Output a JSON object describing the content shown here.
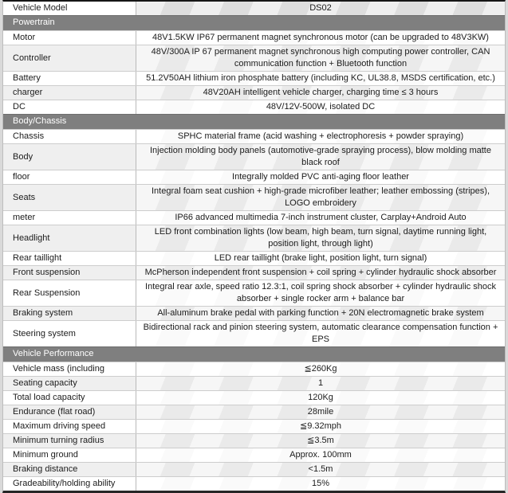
{
  "table": {
    "header": {
      "label": "Vehicle Model",
      "value": "DS02"
    },
    "sections": [
      {
        "title": "Powertrain",
        "rows": [
          {
            "label": "Motor",
            "value": "48V1.5KW IP67 permanent magnet synchronous motor (can be upgraded to 48V3KW)"
          },
          {
            "label": "Controller",
            "value": "48V/300A IP 67 permanent magnet synchronous high computing power controller, CAN communication function + Bluetooth function"
          },
          {
            "label": "Battery",
            "value": "51.2V50AH lithium iron phosphate battery (including KC, UL38.8, MSDS certification, etc.)"
          },
          {
            "label": "charger",
            "value": "48V20AH intelligent vehicle charger, charging time ≤ 3 hours"
          },
          {
            "label": "DC",
            "value": "48V/12V-500W, isolated DC"
          }
        ]
      },
      {
        "title": "Body/Chassis",
        "rows": [
          {
            "label": "Chassis",
            "value": "SPHC material frame (acid washing + electrophoresis + powder spraying)"
          },
          {
            "label": "Body",
            "value": "Injection molding body panels (automotive-grade spraying process), blow molding matte black roof"
          },
          {
            "label": "floor",
            "value": "Integrally molded PVC anti-aging floor leather"
          },
          {
            "label": "Seats",
            "value": "Integral foam seat cushion + high-grade microfiber leather; leather embossing (stripes), LOGO embroidery"
          },
          {
            "label": "meter",
            "value": "IP66 advanced multimedia 7-inch instrument cluster, Carplay+Android Auto"
          },
          {
            "label": "Headlight",
            "value": "LED front combination lights (low beam, high beam, turn signal, daytime running light, position light, through light)"
          },
          {
            "label": "Rear taillight",
            "value": "LED rear taillight (brake light, position light, turn signal)"
          },
          {
            "label": "Front suspension",
            "value": "McPherson independent front suspension + coil spring + cylinder hydraulic shock absorber"
          },
          {
            "label": "Rear Suspension",
            "value": "Integral rear axle, speed ratio 12.3:1, coil spring shock absorber + cylinder hydraulic shock absorber + single rocker arm + balance bar"
          },
          {
            "label": "Braking system",
            "value": "All-aluminum brake pedal with parking function + 20N electromagnetic brake system"
          },
          {
            "label": "Steering system",
            "value": "Bidirectional rack and pinion steering system, automatic clearance compensation function + EPS"
          }
        ]
      },
      {
        "title": "Vehicle Performance",
        "rows": [
          {
            "label": "Vehicle mass (including",
            "value": "≦260Kg"
          },
          {
            "label": "Seating capacity",
            "value": "1"
          },
          {
            "label": "Total load capacity",
            "value": "120Kg"
          },
          {
            "label": "Endurance (flat road)",
            "value": "28mile"
          },
          {
            "label": "Maximum driving speed",
            "value": "≦9.32mph"
          },
          {
            "label": "Minimum turning radius",
            "value": "≦3.5m"
          },
          {
            "label": "Minimum ground",
            "value": "Approx. 100mm"
          },
          {
            "label": "Braking distance",
            "value": "<1.5m"
          },
          {
            "label": "Gradeability/holding ability",
            "value": "15%"
          }
        ]
      }
    ],
    "colors": {
      "section_band": "#7f7f7f",
      "band_text": "#ffffff",
      "header_value_bg": "#e2e2e2",
      "row_stripe": "#efefef",
      "border_dark": "#161616"
    }
  }
}
